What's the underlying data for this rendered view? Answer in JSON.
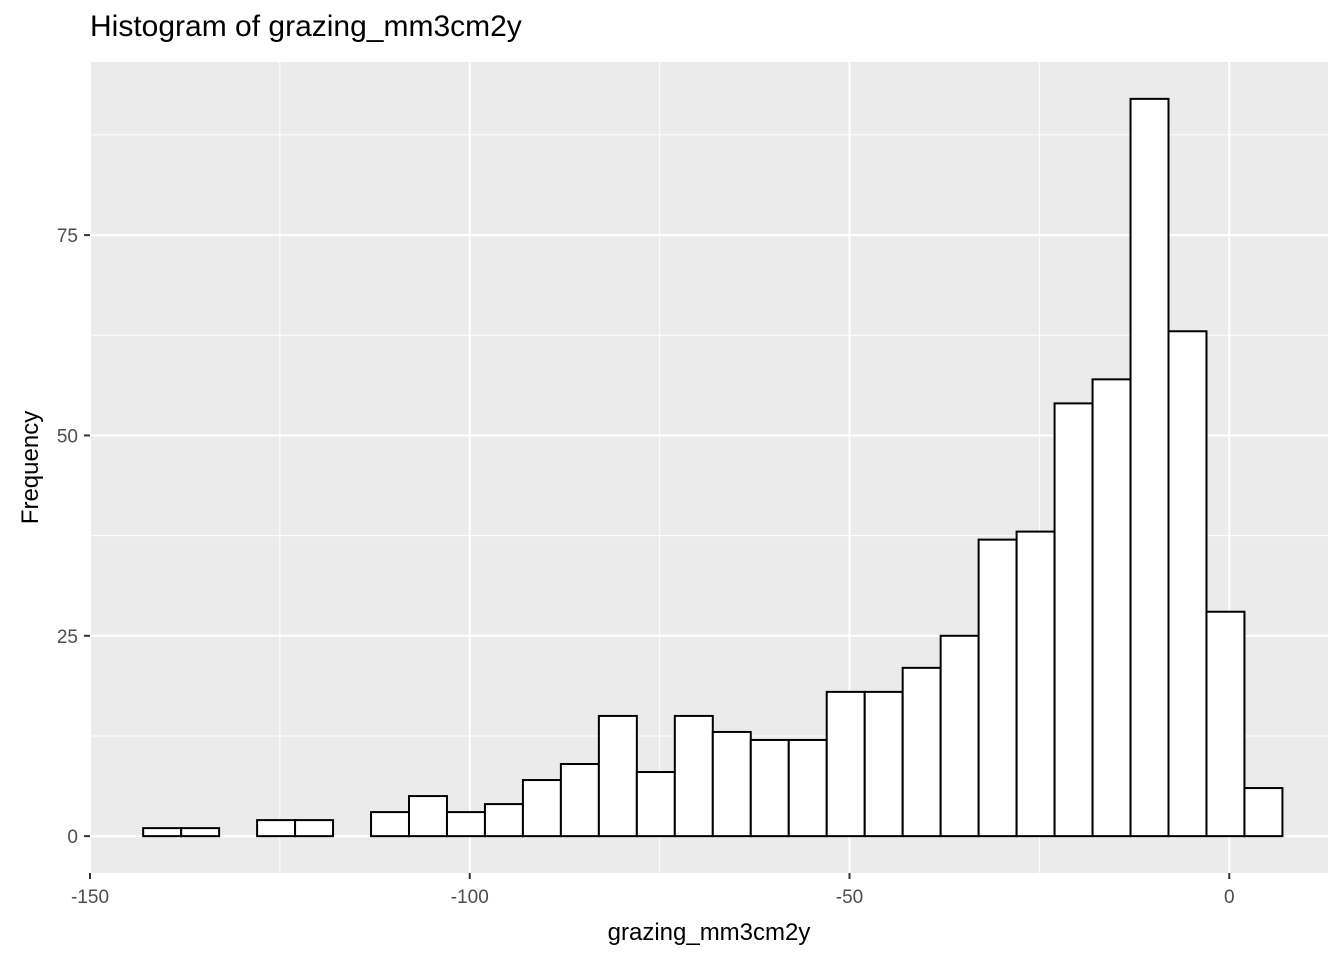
{
  "chart_data": {
    "type": "bar",
    "title": "Histogram of grazing_mm3cm2y",
    "xlabel": "grazing_mm3cm2y",
    "ylabel": "Frequency",
    "xlim": [
      -150,
      13
    ],
    "ylim": [
      -4.6,
      96.6
    ],
    "x_ticks": [
      -150,
      -100,
      -50,
      0
    ],
    "y_ticks": [
      0,
      25,
      50,
      75
    ],
    "grid": true,
    "bin_width": 5,
    "bins": [
      {
        "x_start": -143,
        "x_end": -138,
        "count": 1
      },
      {
        "x_start": -138,
        "x_end": -133,
        "count": 1
      },
      {
        "x_start": -133,
        "x_end": -128,
        "count": 0
      },
      {
        "x_start": -128,
        "x_end": -123,
        "count": 2
      },
      {
        "x_start": -123,
        "x_end": -118,
        "count": 2
      },
      {
        "x_start": -118,
        "x_end": -113,
        "count": 0
      },
      {
        "x_start": -113,
        "x_end": -108,
        "count": 3
      },
      {
        "x_start": -108,
        "x_end": -103,
        "count": 5
      },
      {
        "x_start": -103,
        "x_end": -98,
        "count": 3
      },
      {
        "x_start": -98,
        "x_end": -93,
        "count": 4
      },
      {
        "x_start": -93,
        "x_end": -88,
        "count": 7
      },
      {
        "x_start": -88,
        "x_end": -83,
        "count": 9
      },
      {
        "x_start": -83,
        "x_end": -78,
        "count": 15
      },
      {
        "x_start": -78,
        "x_end": -73,
        "count": 8
      },
      {
        "x_start": -73,
        "x_end": -68,
        "count": 15
      },
      {
        "x_start": -68,
        "x_end": -63,
        "count": 13
      },
      {
        "x_start": -63,
        "x_end": -58,
        "count": 12
      },
      {
        "x_start": -58,
        "x_end": -53,
        "count": 12
      },
      {
        "x_start": -53,
        "x_end": -48,
        "count": 18
      },
      {
        "x_start": -48,
        "x_end": -43,
        "count": 18
      },
      {
        "x_start": -43,
        "x_end": -38,
        "count": 21
      },
      {
        "x_start": -38,
        "x_end": -33,
        "count": 25
      },
      {
        "x_start": -33,
        "x_end": -28,
        "count": 37
      },
      {
        "x_start": -28,
        "x_end": -23,
        "count": 38
      },
      {
        "x_start": -23,
        "x_end": -18,
        "count": 54
      },
      {
        "x_start": -18,
        "x_end": -13,
        "count": 57
      },
      {
        "x_start": -13,
        "x_end": -8,
        "count": 92
      },
      {
        "x_start": -8,
        "x_end": -3,
        "count": 63
      },
      {
        "x_start": -3,
        "x_end": 2,
        "count": 28
      },
      {
        "x_start": 2,
        "x_end": 7,
        "count": 6
      }
    ],
    "colors": {
      "panel_background": "#ebebeb",
      "grid_major": "#ffffff",
      "bar_fill": "#ffffff",
      "bar_outline": "#000000",
      "tick_text": "#4d4d4d",
      "tick_mark": "#333333"
    }
  }
}
